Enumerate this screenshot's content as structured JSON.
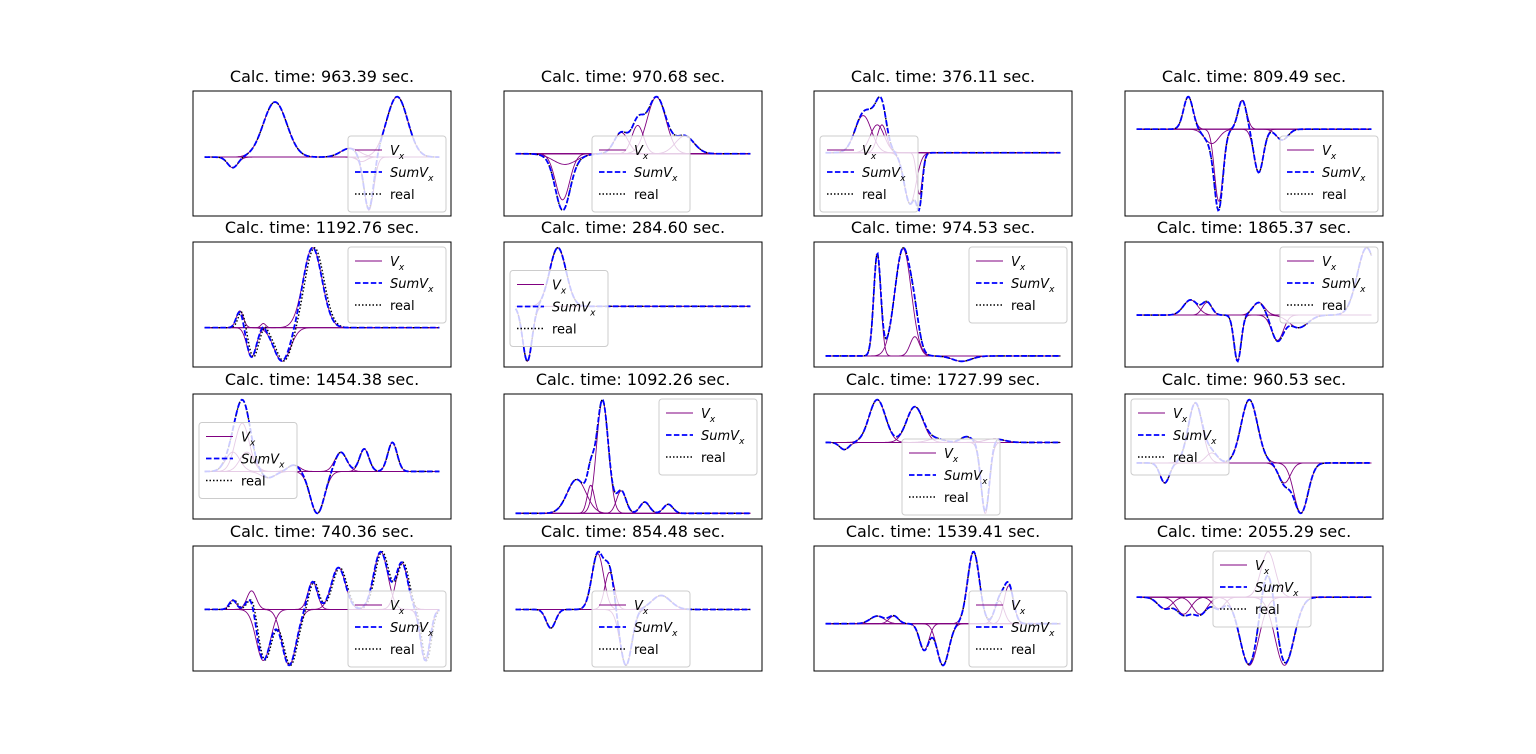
{
  "legend": {
    "vx_label": "V",
    "vx_sub": "x",
    "sum_label": "SumV",
    "sum_sub": "x",
    "real_label": "real"
  },
  "colors": {
    "components": "#800080",
    "sum": "#0000ff",
    "real": "#000000",
    "axes": "#000000",
    "legend_border": "#cccccc"
  },
  "chart_data": [
    {
      "type": "line",
      "title": "Calc. time: 963.39 sec.",
      "legend_position": "lower-right",
      "components": [
        {
          "c": 0.3,
          "w": 0.05,
          "a": 0.62
        },
        {
          "c": 0.12,
          "w": 0.022,
          "a": -0.12
        },
        {
          "c": 0.62,
          "w": 0.04,
          "a": 0.1
        },
        {
          "c": 0.67,
          "w": 0.02,
          "a": -0.05
        },
        {
          "c": 0.7,
          "w": 0.02,
          "a": -0.6
        },
        {
          "c": 0.82,
          "w": 0.045,
          "a": 0.68
        }
      ],
      "real_shift": 0.0
    },
    {
      "type": "line",
      "title": "Calc. time: 970.68 sec.",
      "legend_position": "lower-center",
      "components": [
        {
          "c": 0.2,
          "w": 0.03,
          "a": -0.65
        },
        {
          "c": 0.21,
          "w": 0.05,
          "a": -0.15
        },
        {
          "c": 0.45,
          "w": 0.03,
          "a": 0.3
        },
        {
          "c": 0.52,
          "w": 0.025,
          "a": 0.4
        },
        {
          "c": 0.6,
          "w": 0.04,
          "a": 0.8
        },
        {
          "c": 0.72,
          "w": 0.04,
          "a": 0.25
        }
      ],
      "real_shift": 0.0
    },
    {
      "type": "line",
      "title": "Calc. time: 376.11 sec.",
      "legend_position": "lower-left",
      "components": [
        {
          "c": 0.16,
          "w": 0.035,
          "a": 0.4
        },
        {
          "c": 0.22,
          "w": 0.03,
          "a": 0.3
        },
        {
          "c": 0.24,
          "w": 0.02,
          "a": 0.3
        },
        {
          "c": 0.36,
          "w": 0.025,
          "a": -0.55
        },
        {
          "c": 0.4,
          "w": 0.012,
          "a": -0.45
        }
      ],
      "real_shift": 0.0
    },
    {
      "type": "line",
      "title": "Calc. time: 809.49 sec.",
      "legend_position": "lower-right",
      "components": [
        {
          "c": 0.22,
          "w": 0.02,
          "a": 0.45
        },
        {
          "c": 0.35,
          "w": 0.018,
          "a": -1.0
        },
        {
          "c": 0.32,
          "w": 0.03,
          "a": -0.2
        },
        {
          "c": 0.45,
          "w": 0.018,
          "a": 0.4
        },
        {
          "c": 0.52,
          "w": 0.02,
          "a": -0.6
        },
        {
          "c": 0.62,
          "w": 0.025,
          "a": -0.15
        }
      ],
      "real_shift": 0.0
    },
    {
      "type": "line",
      "title": "Calc. time: 1192.76 sec.",
      "legend_position": "upper-right",
      "components": [
        {
          "c": 0.15,
          "w": 0.015,
          "a": 0.2
        },
        {
          "c": 0.2,
          "w": 0.02,
          "a": -0.35
        },
        {
          "c": 0.25,
          "w": 0.01,
          "a": 0.05
        },
        {
          "c": 0.33,
          "w": 0.035,
          "a": -0.4
        },
        {
          "c": 0.46,
          "w": 0.04,
          "a": 0.95
        }
      ],
      "real_shift": 0.008
    },
    {
      "type": "line",
      "title": "Calc. time: 284.60 sec.",
      "legend_position": "left-middle",
      "components": [
        {
          "c": 0.05,
          "w": 0.02,
          "a": -0.75
        },
        {
          "c": 0.18,
          "w": 0.035,
          "a": 0.8
        }
      ],
      "real_shift": 0.0
    },
    {
      "type": "line",
      "title": "Calc. time: 974.53 sec.",
      "legend_position": "upper-right",
      "components": [
        {
          "c": 0.22,
          "w": 0.015,
          "a": 0.95
        },
        {
          "c": 0.33,
          "w": 0.035,
          "a": 1.0
        },
        {
          "c": 0.38,
          "w": 0.02,
          "a": 0.18
        },
        {
          "c": 0.58,
          "w": 0.04,
          "a": -0.05
        }
      ],
      "real_shift": 0.0
    },
    {
      "type": "line",
      "title": "Calc. time: 1865.37 sec.",
      "legend_position": "upper-right",
      "components": [
        {
          "c": 0.23,
          "w": 0.03,
          "a": 0.18
        },
        {
          "c": 0.3,
          "w": 0.02,
          "a": 0.15
        },
        {
          "c": 0.43,
          "w": 0.015,
          "a": -0.55
        },
        {
          "c": 0.52,
          "w": 0.025,
          "a": 0.15
        },
        {
          "c": 0.6,
          "w": 0.025,
          "a": -0.3
        },
        {
          "c": 0.69,
          "w": 0.04,
          "a": -0.15
        },
        {
          "c": 0.98,
          "w": 0.04,
          "a": 0.8
        }
      ],
      "real_shift": 0.0
    },
    {
      "type": "line",
      "title": "Calc. time: 1454.38 sec.",
      "legend_position": "left-middle",
      "components": [
        {
          "c": 0.12,
          "w": 0.03,
          "a": 0.3
        },
        {
          "c": 0.16,
          "w": 0.03,
          "a": 0.75
        },
        {
          "c": 0.18,
          "w": 0.03,
          "a": 0.3
        },
        {
          "c": 0.27,
          "w": 0.03,
          "a": -0.1
        },
        {
          "c": 0.38,
          "w": 0.025,
          "a": 0.1
        },
        {
          "c": 0.48,
          "w": 0.03,
          "a": -0.65
        },
        {
          "c": 0.58,
          "w": 0.025,
          "a": 0.3
        },
        {
          "c": 0.68,
          "w": 0.02,
          "a": 0.35
        },
        {
          "c": 0.8,
          "w": 0.02,
          "a": 0.45
        }
      ],
      "real_shift": 0.0
    },
    {
      "type": "line",
      "title": "Calc. time: 1092.26 sec.",
      "legend_position": "upper-right",
      "components": [
        {
          "c": 0.26,
          "w": 0.04,
          "a": 0.3
        },
        {
          "c": 0.32,
          "w": 0.015,
          "a": 0.25
        },
        {
          "c": 0.37,
          "w": 0.025,
          "a": 1.0
        },
        {
          "c": 0.45,
          "w": 0.02,
          "a": 0.2
        },
        {
          "c": 0.55,
          "w": 0.02,
          "a": 0.1
        },
        {
          "c": 0.65,
          "w": 0.02,
          "a": 0.08
        }
      ],
      "real_shift": 0.0
    },
    {
      "type": "line",
      "title": "Calc. time: 1727.99 sec.",
      "legend_position": "lower-center",
      "components": [
        {
          "c": 0.08,
          "w": 0.02,
          "a": -0.1
        },
        {
          "c": 0.22,
          "w": 0.035,
          "a": 0.6
        },
        {
          "c": 0.38,
          "w": 0.035,
          "a": 0.5
        },
        {
          "c": 0.47,
          "w": 0.035,
          "a": 0.05
        },
        {
          "c": 0.6,
          "w": 0.025,
          "a": 0.08
        },
        {
          "c": 0.72,
          "w": 0.04,
          "a": 0.05
        },
        {
          "c": 0.68,
          "w": 0.018,
          "a": -1.0
        }
      ],
      "real_shift": 0.0
    },
    {
      "type": "line",
      "title": "Calc. time: 960.53 sec.",
      "legend_position": "upper-left",
      "components": [
        {
          "c": 0.12,
          "w": 0.02,
          "a": -0.3
        },
        {
          "c": 0.25,
          "w": 0.03,
          "a": 0.9
        },
        {
          "c": 0.32,
          "w": 0.025,
          "a": 0.15
        },
        {
          "c": 0.48,
          "w": 0.035,
          "a": 0.95
        },
        {
          "c": 0.63,
          "w": 0.025,
          "a": -0.3
        },
        {
          "c": 0.7,
          "w": 0.03,
          "a": -0.75
        }
      ],
      "real_shift": 0.0
    },
    {
      "type": "line",
      "title": "Calc. time: 740.36 sec.",
      "legend_position": "lower-right",
      "components": [
        {
          "c": 0.12,
          "w": 0.015,
          "a": 0.1
        },
        {
          "c": 0.2,
          "w": 0.02,
          "a": 0.2
        },
        {
          "c": 0.25,
          "w": 0.03,
          "a": -0.55
        },
        {
          "c": 0.36,
          "w": 0.03,
          "a": -0.6
        },
        {
          "c": 0.46,
          "w": 0.02,
          "a": 0.3
        },
        {
          "c": 0.57,
          "w": 0.03,
          "a": 0.45
        },
        {
          "c": 0.75,
          "w": 0.03,
          "a": 0.62
        },
        {
          "c": 0.84,
          "w": 0.025,
          "a": 0.5
        },
        {
          "c": 0.94,
          "w": 0.02,
          "a": -0.55
        }
      ],
      "real_shift": 0.006
    },
    {
      "type": "line",
      "title": "Calc. time: 854.48 sec.",
      "legend_position": "lower-center",
      "components": [
        {
          "c": 0.15,
          "w": 0.02,
          "a": -0.2
        },
        {
          "c": 0.35,
          "w": 0.025,
          "a": 0.6
        },
        {
          "c": 0.4,
          "w": 0.02,
          "a": 0.4
        },
        {
          "c": 0.47,
          "w": 0.025,
          "a": -0.6
        },
        {
          "c": 0.62,
          "w": 0.04,
          "a": 0.15
        }
      ],
      "real_shift": 0.0
    },
    {
      "type": "line",
      "title": "Calc. time: 1539.41 sec.",
      "legend_position": "lower-right",
      "components": [
        {
          "c": 0.22,
          "w": 0.03,
          "a": 0.1
        },
        {
          "c": 0.29,
          "w": 0.02,
          "a": 0.1
        },
        {
          "c": 0.42,
          "w": 0.02,
          "a": -0.35
        },
        {
          "c": 0.5,
          "w": 0.025,
          "a": -0.55
        },
        {
          "c": 0.63,
          "w": 0.025,
          "a": 0.95
        },
        {
          "c": 0.74,
          "w": 0.02,
          "a": 0.3
        },
        {
          "c": 0.78,
          "w": 0.02,
          "a": 0.5
        }
      ],
      "real_shift": 0.0
    },
    {
      "type": "line",
      "title": "Calc. time: 2055.29 sec.",
      "legend_position": "upper-center",
      "components": [
        {
          "c": 0.12,
          "w": 0.03,
          "a": -0.1
        },
        {
          "c": 0.2,
          "w": 0.03,
          "a": -0.15
        },
        {
          "c": 0.27,
          "w": 0.03,
          "a": -0.15
        },
        {
          "c": 0.35,
          "w": 0.025,
          "a": -0.1
        },
        {
          "c": 0.48,
          "w": 0.04,
          "a": -0.6
        },
        {
          "c": 0.56,
          "w": 0.03,
          "a": 0.4
        },
        {
          "c": 0.63,
          "w": 0.04,
          "a": -0.6
        }
      ],
      "real_shift": 0.0
    }
  ]
}
